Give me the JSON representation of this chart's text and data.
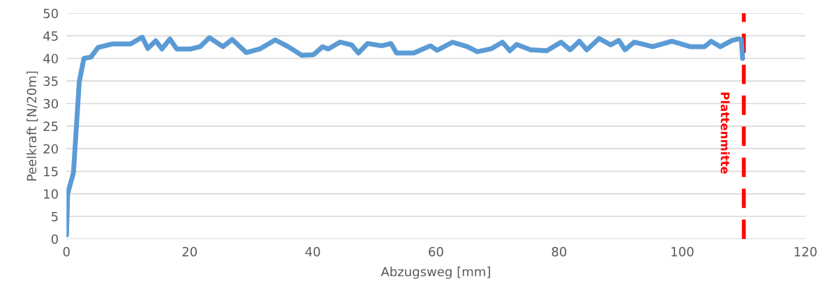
{
  "chart_data": {
    "type": "line",
    "xlabel": "Abzugsweg [mm]",
    "ylabel": "Peelkraft [N/20m]",
    "xlim": [
      0,
      120
    ],
    "xticks": [
      0,
      20,
      40,
      60,
      80,
      100,
      120
    ],
    "ylim": [
      0,
      50
    ],
    "yticks": [
      0,
      5,
      10,
      15,
      20,
      25,
      30,
      35,
      40,
      45,
      50
    ],
    "grid": "y",
    "marker": "none",
    "line_style": "solid",
    "series": [
      {
        "color": "#5b9bd5",
        "x": [
          0,
          0.19,
          1.13,
          2.08,
          2.83,
          3.96,
          5.1,
          7.4,
          10.4,
          12.3,
          13.2,
          14.5,
          15.5,
          16.8,
          17.9,
          20.2,
          21.7,
          23.2,
          25.4,
          26.9,
          29.2,
          31.4,
          33.9,
          36,
          38.2,
          40.1,
          41.6,
          42.5,
          44.4,
          46.3,
          47.4,
          48.9,
          51.2,
          52.7,
          53.6,
          56.4,
          59.1,
          60.2,
          62.7,
          65.1,
          66.7,
          68.9,
          70.8,
          72,
          73.1,
          75.4,
          78,
          80.3,
          81.8,
          83.3,
          84.5,
          86.5,
          88.4,
          89.7,
          90.7,
          92.2,
          95.2,
          98.3,
          101.3,
          103.6,
          104.7,
          106.2,
          108.1,
          109.1,
          109.6,
          109.8
        ],
        "values": [
          0.9,
          10,
          14.7,
          34.9,
          40,
          40.3,
          42.4,
          43.2,
          43.2,
          44.7,
          42.2,
          43.9,
          42.1,
          44.3,
          42.1,
          42.1,
          42.6,
          44.6,
          42.6,
          44.2,
          41.3,
          42.1,
          44.1,
          42.6,
          40.7,
          40.8,
          42.6,
          42.1,
          43.6,
          43,
          41.2,
          43.3,
          42.8,
          43.3,
          41.2,
          41.2,
          42.8,
          41.8,
          43.6,
          42.6,
          41.5,
          42.1,
          43.6,
          41.7,
          43.1,
          41.9,
          41.7,
          43.6,
          41.9,
          43.8,
          41.9,
          44.4,
          43,
          44,
          41.9,
          43.6,
          42.6,
          43.8,
          42.6,
          42.6,
          43.8,
          42.6,
          44,
          44.3,
          44.2,
          40
        ]
      }
    ],
    "ref_lines": [
      {
        "axis": "x",
        "value": 110,
        "label": "Plattenmitte",
        "color": "#ff0000",
        "line_style": "dashed"
      }
    ]
  }
}
